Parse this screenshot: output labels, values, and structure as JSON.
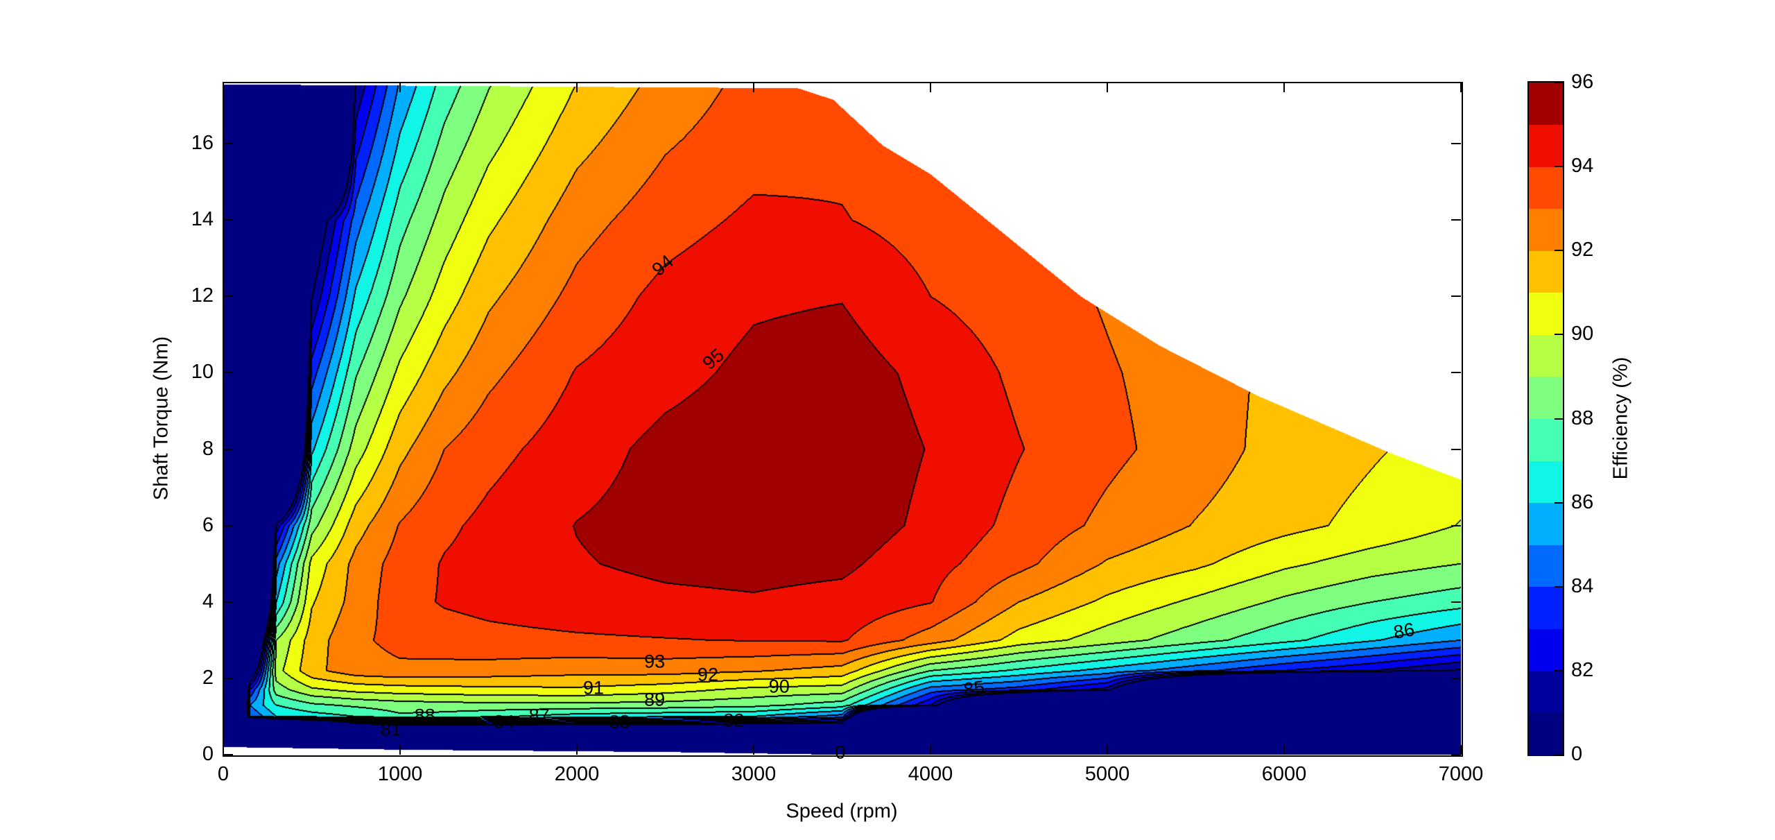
{
  "chart_data": {
    "type": "contour",
    "title": "",
    "xlabel": "Speed  (rpm)",
    "ylabel": "Shaft Torque  (Nm)",
    "xlim": [
      0,
      7000
    ],
    "ylim": [
      0,
      17.6
    ],
    "xticks": [
      "0",
      "1000",
      "2000",
      "3000",
      "4000",
      "5000",
      "6000",
      "7000"
    ],
    "yticks": [
      "0",
      "2",
      "4",
      "6",
      "8",
      "10",
      "12",
      "14",
      "16"
    ],
    "grid_on": false,
    "levels": [
      0,
      81,
      82,
      83,
      84,
      85,
      86,
      87,
      88,
      89,
      90,
      91,
      92,
      93,
      94,
      95,
      96
    ],
    "band_colors": [
      "#000080",
      "#00009C",
      "#0000EE",
      "#0020FF",
      "#006AFF",
      "#00B0FF",
      "#10F5E5",
      "#45FFB5",
      "#7FFF7F",
      "#B5FF45",
      "#F0FF0F",
      "#FFC000",
      "#FF8000",
      "#FF4A00",
      "#F00E00",
      "#A00000"
    ],
    "colorbar": {
      "label": "Efficiency (%)",
      "ticks": [
        "0",
        "82",
        "84",
        "86",
        "88",
        "90",
        "92",
        "94",
        "96"
      ],
      "placement": "right"
    },
    "grid": {
      "speed_rpm": [
        0,
        150,
        300,
        500,
        750,
        1000,
        1250,
        1500,
        2000,
        2500,
        3000,
        3500,
        4000,
        4500,
        5000,
        5500,
        6000,
        6500,
        7000
      ],
      "torque_nm": [
        0,
        0.8,
        1.0,
        1.3,
        1.7,
        2.2,
        3,
        4,
        5,
        6,
        8,
        10,
        12,
        14,
        16,
        17.6
      ],
      "efficiency_pct": [
        [
          40,
          40,
          40,
          40,
          40,
          40,
          40,
          40,
          40,
          40,
          40,
          40,
          40,
          40,
          40,
          40,
          40,
          40,
          40
        ],
        [
          40,
          60,
          70,
          75,
          80,
          82,
          82,
          81.8,
          81.3,
          81,
          80.7,
          80.2,
          40,
          40,
          40,
          40,
          40,
          40,
          40
        ],
        [
          40,
          84,
          86,
          86.5,
          87,
          87.8,
          87.6,
          87.2,
          86.5,
          86.2,
          86,
          84.5,
          50,
          40,
          40,
          40,
          40,
          40,
          40
        ],
        [
          40,
          85,
          87,
          87.8,
          88.2,
          88.5,
          88.6,
          88.7,
          88.7,
          88.6,
          88.3,
          87.5,
          82,
          70,
          50,
          40,
          40,
          40,
          40
        ],
        [
          40,
          83,
          88.5,
          89.8,
          90.3,
          90.5,
          90.6,
          90.7,
          90.8,
          90.4,
          89.7,
          89.5,
          84.5,
          83.5,
          81.5,
          70,
          60,
          50,
          45
        ],
        [
          40,
          78,
          89.6,
          91.7,
          92.6,
          92.8,
          92.7,
          92.6,
          92.35,
          92.4,
          92.1,
          91.6,
          88.0,
          86.8,
          85.6,
          84.3,
          83.0,
          82.0,
          80.8
        ],
        [
          40,
          72,
          89.0,
          91.5,
          92.8,
          93.3,
          93.5,
          93.7,
          93.85,
          93.95,
          94.05,
          94.1,
          92.5,
          90.6,
          89.5,
          88.4,
          87.3,
          86.1,
          85.0
        ],
        [
          40,
          60,
          86.0,
          90.9,
          92.4,
          93.6,
          94.1,
          94.3,
          94.6,
          94.8,
          94.9,
          94.7,
          94.05,
          92.0,
          90.8,
          89.8,
          88.8,
          88.0,
          87.4
        ],
        [
          40,
          50,
          84.5,
          90.3,
          92.33,
          93.43,
          94.08,
          94.37,
          94.93,
          95.2,
          95.3,
          95.2,
          94.35,
          93.3,
          91.9,
          91.2,
          90.2,
          89.5,
          89.0
        ],
        [
          40,
          45,
          81.4,
          88.6,
          91.57,
          93.07,
          93.8,
          94.27,
          95.03,
          95.4,
          95.6,
          95.6,
          94.75,
          93.7,
          92.75,
          91.95,
          91.3,
          90.7,
          89.95
        ],
        [
          40,
          40,
          60,
          85.8,
          89.5,
          91.7,
          93.0,
          93.66,
          94.55,
          95.3,
          95.6,
          95.7,
          94.95,
          94.05,
          93.25,
          92.5,
          91.6,
          91.1,
          90.6
        ],
        [
          40,
          40,
          50,
          83.5,
          87.9,
          90.25,
          91.73,
          92.75,
          94.06,
          94.67,
          95.25,
          95.5,
          94.7,
          93.8,
          93.1,
          92.5,
          91.7,
          91.0,
          90.5
        ],
        [
          40,
          40,
          45,
          80.9,
          86.2,
          88.8,
          90.5,
          91.8,
          93.3,
          94.3,
          94.85,
          94.95,
          94.0,
          93.5,
          92.9,
          92.3,
          91.6,
          91.0,
          90.5
        ],
        [
          40,
          40,
          40,
          79,
          84.5,
          87.6,
          89.4,
          90.77,
          92.6,
          93.58,
          94.2,
          94.05,
          93.6,
          93.2,
          92.8,
          92.3,
          91.6,
          91.0,
          90.5
        ],
        [
          40,
          40,
          40,
          60,
          82.6,
          86.2,
          88.3,
          89.7,
          91.7,
          92.9,
          93.6,
          93.8,
          93.4,
          93.0,
          92.5,
          92.0,
          91.3,
          90.8,
          90.3
        ],
        [
          40,
          40,
          40,
          60,
          81.1,
          85.1,
          87.4,
          88.9,
          91.0,
          92.35,
          93.3,
          93.6,
          93.5,
          93.0,
          92.5,
          92.0,
          91.0,
          90.5,
          90.0
        ]
      ]
    },
    "max_torque_envelope": [
      [
        0,
        17.55
      ],
      [
        3250,
        17.45
      ],
      [
        3450,
        17.15
      ],
      [
        3730,
        15.95
      ],
      [
        4000,
        15.2
      ],
      [
        4400,
        13.7
      ],
      [
        4850,
        12.0
      ],
      [
        5300,
        10.7
      ],
      [
        5850,
        9.4
      ],
      [
        6300,
        8.5
      ],
      [
        6600,
        7.9
      ],
      [
        7000,
        7.2
      ]
    ],
    "min_torque_boundary": [
      [
        0,
        0.2
      ],
      [
        1000,
        0.13
      ],
      [
        2500,
        0.07
      ],
      [
        3450,
        0
      ],
      [
        7000,
        0
      ]
    ],
    "contour_labels": [
      {
        "text": "94",
        "speed": 2485,
        "torque": 12.8
      },
      {
        "text": "95",
        "speed": 2773,
        "torque": 10.35
      },
      {
        "text": "93",
        "speed": 2440,
        "torque": 2.44
      },
      {
        "text": "92",
        "speed": 2741,
        "torque": 2.08
      },
      {
        "text": "91",
        "speed": 2094,
        "torque": 1.75
      },
      {
        "text": "90",
        "speed": 3144,
        "torque": 1.78
      },
      {
        "text": "89",
        "speed": 2440,
        "torque": 1.43
      },
      {
        "text": "88",
        "speed": 1140,
        "torque": 1.01
      },
      {
        "text": "87",
        "speed": 1787,
        "torque": 1.01
      },
      {
        "text": "84",
        "speed": 1588,
        "torque": 0.86
      },
      {
        "text": "83",
        "speed": 2241,
        "torque": 0.86
      },
      {
        "text": "82",
        "speed": 2888,
        "torque": 0.89
      },
      {
        "text": "81",
        "speed": 948,
        "torque": 0.65
      },
      {
        "text": "85",
        "speed": 4246,
        "torque": 1.72
      },
      {
        "text": "86",
        "speed": 6680,
        "torque": 3.24
      },
      {
        "text": "0",
        "speed": 3490,
        "torque": 0.06
      }
    ]
  }
}
